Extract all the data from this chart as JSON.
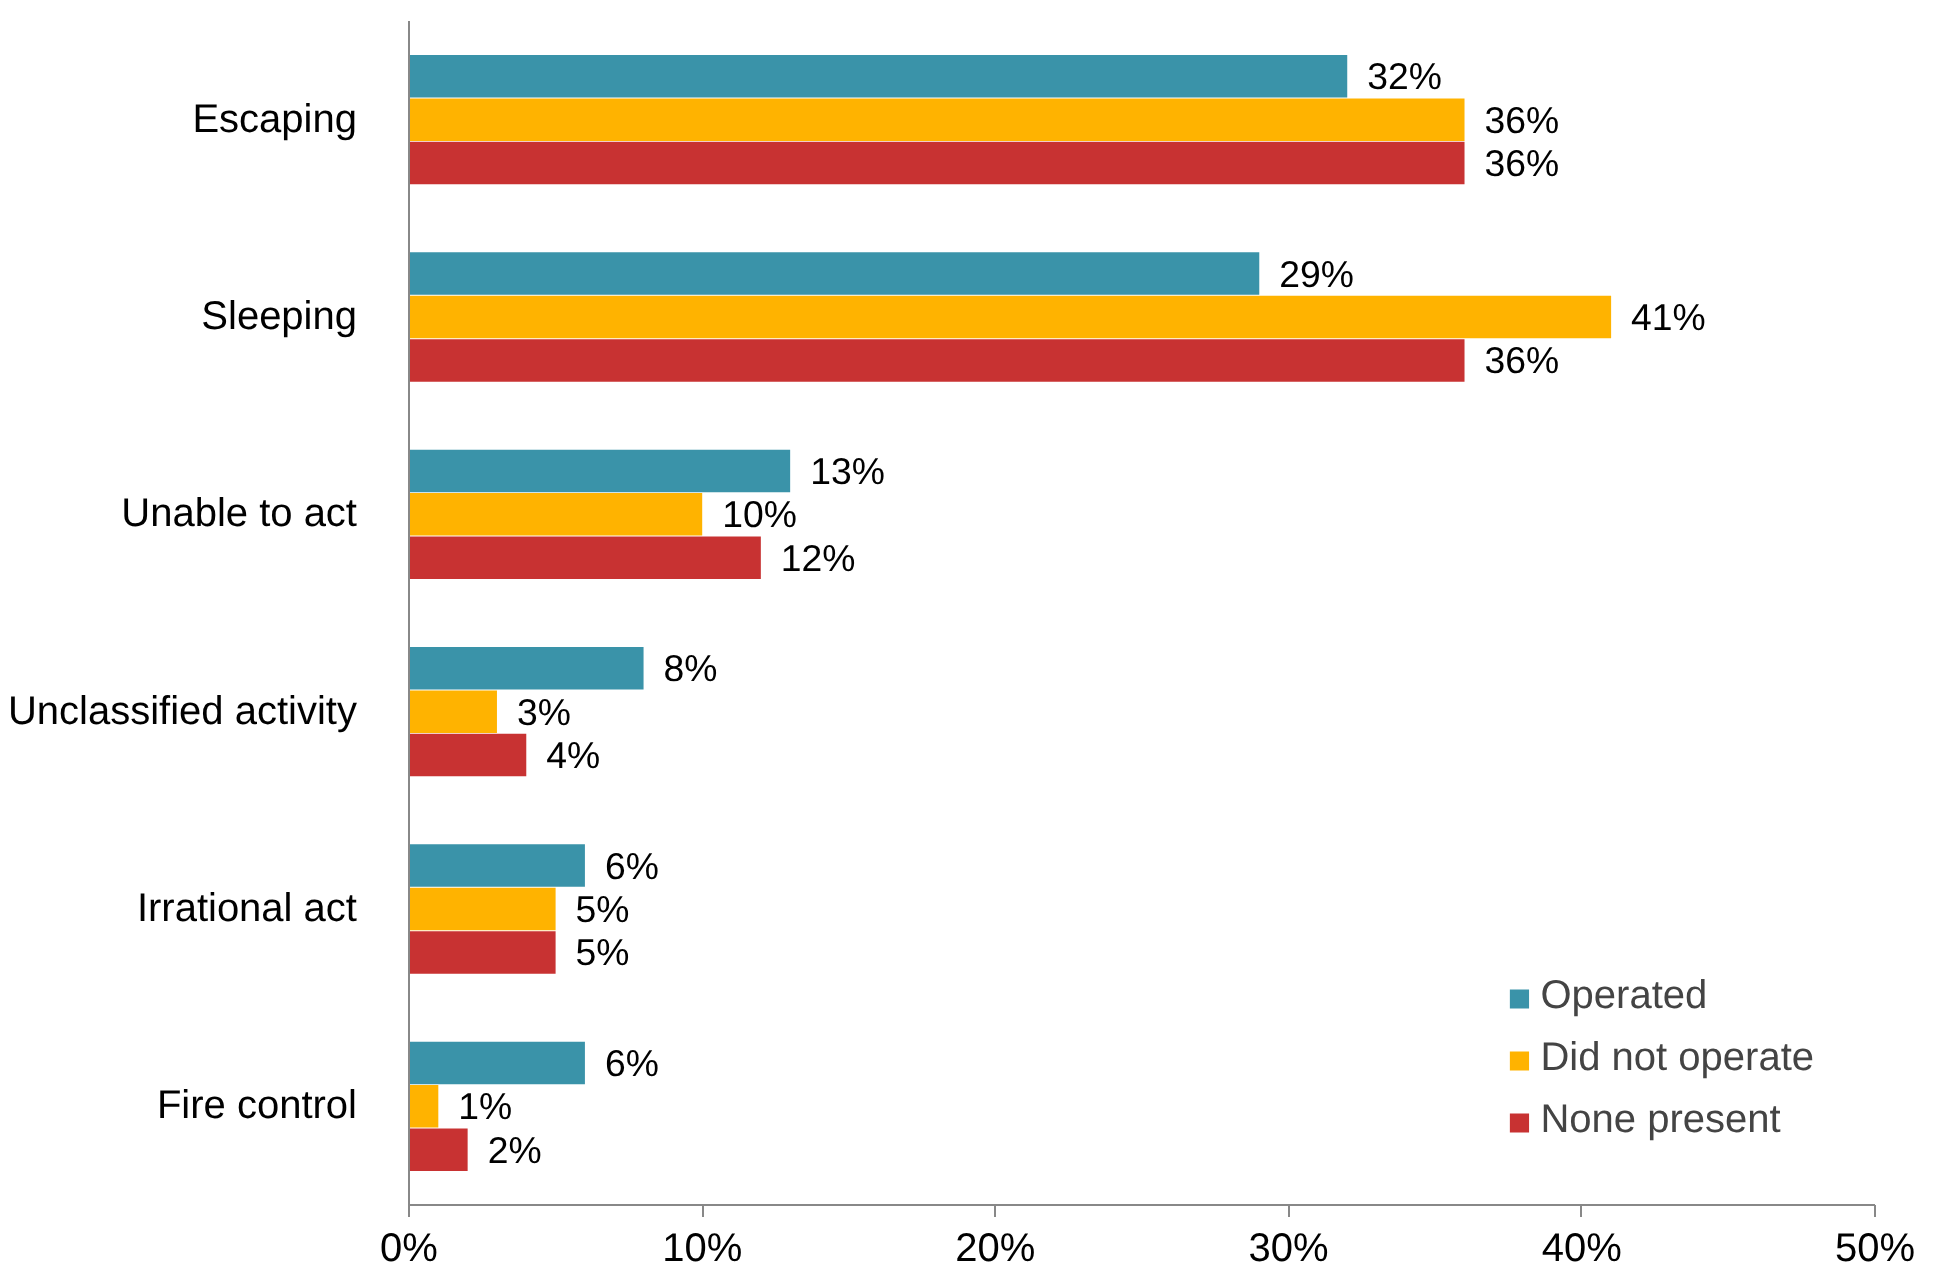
{
  "chart_data": {
    "type": "bar",
    "orientation": "horizontal",
    "categories": [
      "Escaping",
      "Sleeping",
      "Unable to act",
      "Unclassified activity",
      "Irrational act",
      "Fire control"
    ],
    "series": [
      {
        "name": "Operated",
        "color": "#3a93a9",
        "values": [
          32,
          29,
          13,
          8,
          6,
          6
        ],
        "value_labels": [
          "32%",
          "29%",
          "13%",
          "8%",
          "6%",
          "6%"
        ]
      },
      {
        "name": "Did not operate",
        "color": "#ffb300",
        "values": [
          36,
          41,
          10,
          3,
          5,
          1
        ],
        "value_labels": [
          "36%",
          "41%",
          "10%",
          "3%",
          "5%",
          "1%"
        ]
      },
      {
        "name": "None present",
        "color": "#c83232",
        "values": [
          36,
          36,
          12,
          4,
          5,
          2
        ],
        "value_labels": [
          "36%",
          "36%",
          "12%",
          "4%",
          "5%",
          "2%"
        ]
      }
    ],
    "xlim": [
      0,
      50
    ],
    "xticks": [
      {
        "value": 0,
        "label": "0%"
      },
      {
        "value": 10,
        "label": "10%"
      },
      {
        "value": 20,
        "label": "20%"
      },
      {
        "value": 30,
        "label": "30%"
      },
      {
        "value": 40,
        "label": "40%"
      },
      {
        "value": 50,
        "label": "50%"
      }
    ],
    "grid": false,
    "legend": "bottom right"
  }
}
